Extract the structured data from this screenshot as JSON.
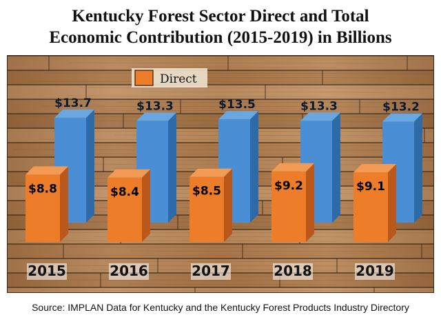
{
  "chart_data": {
    "type": "bar",
    "title": "Kentucky Forest Sector Direct and Total Economic Contribution (2015-2019) in Billions",
    "title_lines": [
      "Kentucky Forest Sector Direct and Total",
      "Economic Contribution (2015-2019) in Billions"
    ],
    "categories": [
      "2015",
      "2016",
      "2017",
      "2018",
      "2019"
    ],
    "series": [
      {
        "name": "",
        "values": [
          13.7,
          13.3,
          13.5,
          13.3,
          13.2
        ],
        "labels": [
          "$13.7",
          "$13.3",
          "$13.5",
          "$13.3",
          "$13.2"
        ],
        "color": "#4a8fd6",
        "side_color": "#2c6aa8",
        "top_color": "#6aa6e0"
      },
      {
        "name": "Direct",
        "values": [
          8.8,
          8.4,
          8.5,
          9.2,
          9.1
        ],
        "labels": [
          "$8.8",
          "$8.4",
          "$8.5",
          "$9.2",
          "$9.1"
        ],
        "color": "#ee7d2a",
        "side_color": "#b9581a",
        "top_color": "#f39a55"
      }
    ],
    "legend": {
      "label": "Direct",
      "position": "top-left"
    },
    "ylim": [
      0,
      16
    ],
    "grid": false,
    "background": "wood-planks"
  },
  "source": "Source: IMPLAN Data for Kentucky and the Kentucky Forest Products Industry Directory",
  "colors": {
    "wood_light": "#b98a5c",
    "wood_dark": "#6e4a2a",
    "seam": "#3a2614",
    "label_text": "#000000",
    "total_label_text": "#0b1a2e"
  }
}
